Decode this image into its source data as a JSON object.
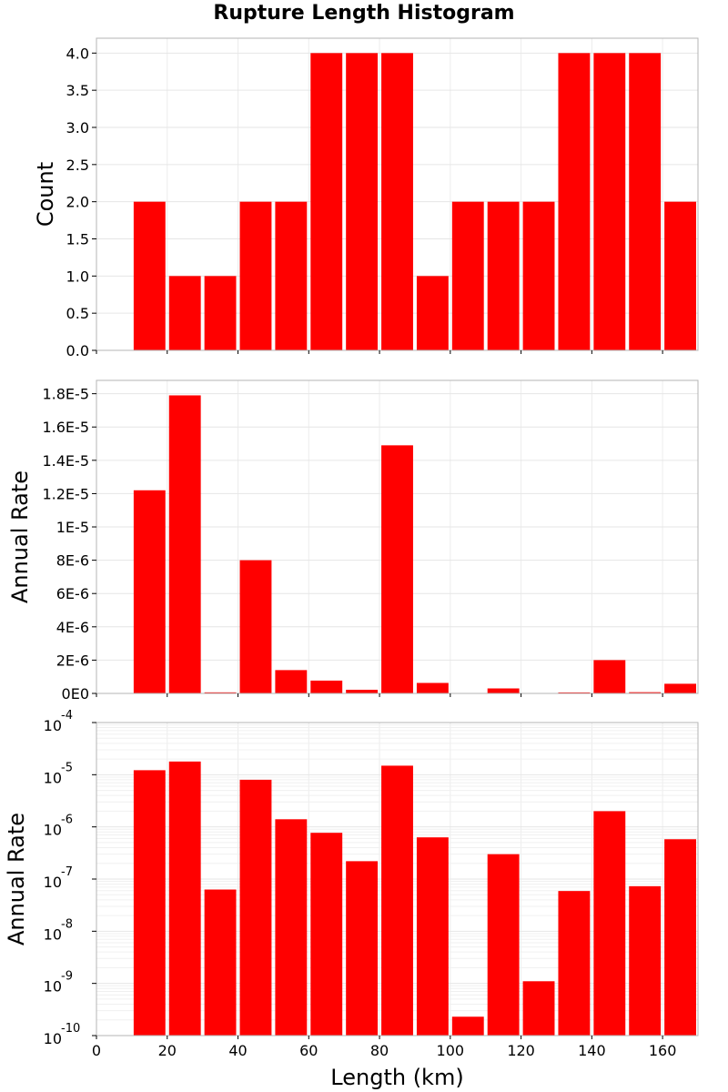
{
  "chart_data": {
    "title": "Rupture Length Histogram",
    "xlabel": "Length (km)",
    "xlim": [
      0,
      170
    ],
    "x_ticks": [
      "0",
      "20",
      "40",
      "60",
      "80",
      "100",
      "120",
      "140",
      "160"
    ],
    "bar_color": "#ff0000",
    "bin_width": 10,
    "bin_centers": [
      15,
      25,
      35,
      45,
      55,
      65,
      75,
      85,
      95,
      105,
      115,
      125,
      135,
      145,
      155,
      165
    ],
    "panels": [
      {
        "type": "bar",
        "ylabel": "Count",
        "scale": "linear",
        "ylim": [
          0,
          4.2
        ],
        "y_ticks": [
          {
            "v": 0,
            "label": "0.0"
          },
          {
            "v": 0.5,
            "label": "0.5"
          },
          {
            "v": 1,
            "label": "1.0"
          },
          {
            "v": 1.5,
            "label": "1.5"
          },
          {
            "v": 2,
            "label": "2.0"
          },
          {
            "v": 2.5,
            "label": "2.5"
          },
          {
            "v": 3,
            "label": "3.0"
          },
          {
            "v": 3.5,
            "label": "3.5"
          },
          {
            "v": 4,
            "label": "4.0"
          }
        ],
        "values": [
          2,
          1,
          1,
          2,
          2,
          4,
          4,
          4,
          1,
          2,
          2,
          2,
          4,
          4,
          4,
          2
        ]
      },
      {
        "type": "bar",
        "ylabel": "Annual Rate",
        "scale": "linear",
        "ylim": [
          0,
          1.88e-05
        ],
        "y_ticks": [
          {
            "v": 0,
            "label": "0E0"
          },
          {
            "v": 2e-06,
            "label": "2E-6"
          },
          {
            "v": 4e-06,
            "label": "4E-6"
          },
          {
            "v": 6e-06,
            "label": "6E-6"
          },
          {
            "v": 8e-06,
            "label": "8E-6"
          },
          {
            "v": 1e-05,
            "label": "1E-5"
          },
          {
            "v": 1.2e-05,
            "label": "1.2E-5"
          },
          {
            "v": 1.4e-05,
            "label": "1.4E-5"
          },
          {
            "v": 1.6e-05,
            "label": "1.6E-5"
          },
          {
            "v": 1.8e-05,
            "label": "1.8E-5"
          }
        ],
        "values": [
          1.22e-05,
          1.79e-05,
          6.3e-08,
          8e-06,
          1.4e-06,
          7.7e-07,
          2.2e-07,
          1.49e-05,
          6.3e-07,
          2.3e-10,
          3e-07,
          1.1e-09,
          5.9e-08,
          2e-06,
          7.3e-08,
          5.8e-07
        ]
      },
      {
        "type": "bar",
        "ylabel": "Annual Rate",
        "scale": "log",
        "ylim": [
          1e-10,
          0.0001
        ],
        "y_ticks": [
          {
            "v": 1e-10,
            "base": "10",
            "exp": "-10"
          },
          {
            "v": 1e-09,
            "base": "10",
            "exp": "-9"
          },
          {
            "v": 1e-08,
            "base": "10",
            "exp": "-8"
          },
          {
            "v": 1e-07,
            "base": "10",
            "exp": "-7"
          },
          {
            "v": 1e-06,
            "base": "10",
            "exp": "-6"
          },
          {
            "v": 1e-05,
            "base": "10",
            "exp": "-5"
          },
          {
            "v": 0.0001,
            "base": "10",
            "exp": "-4"
          }
        ],
        "values": [
          1.22e-05,
          1.79e-05,
          6.3e-08,
          8e-06,
          1.4e-06,
          7.7e-07,
          2.2e-07,
          1.49e-05,
          6.3e-07,
          2.3e-10,
          3e-07,
          1.1e-09,
          5.9e-08,
          2e-06,
          7.3e-08,
          5.8e-07
        ]
      }
    ]
  }
}
